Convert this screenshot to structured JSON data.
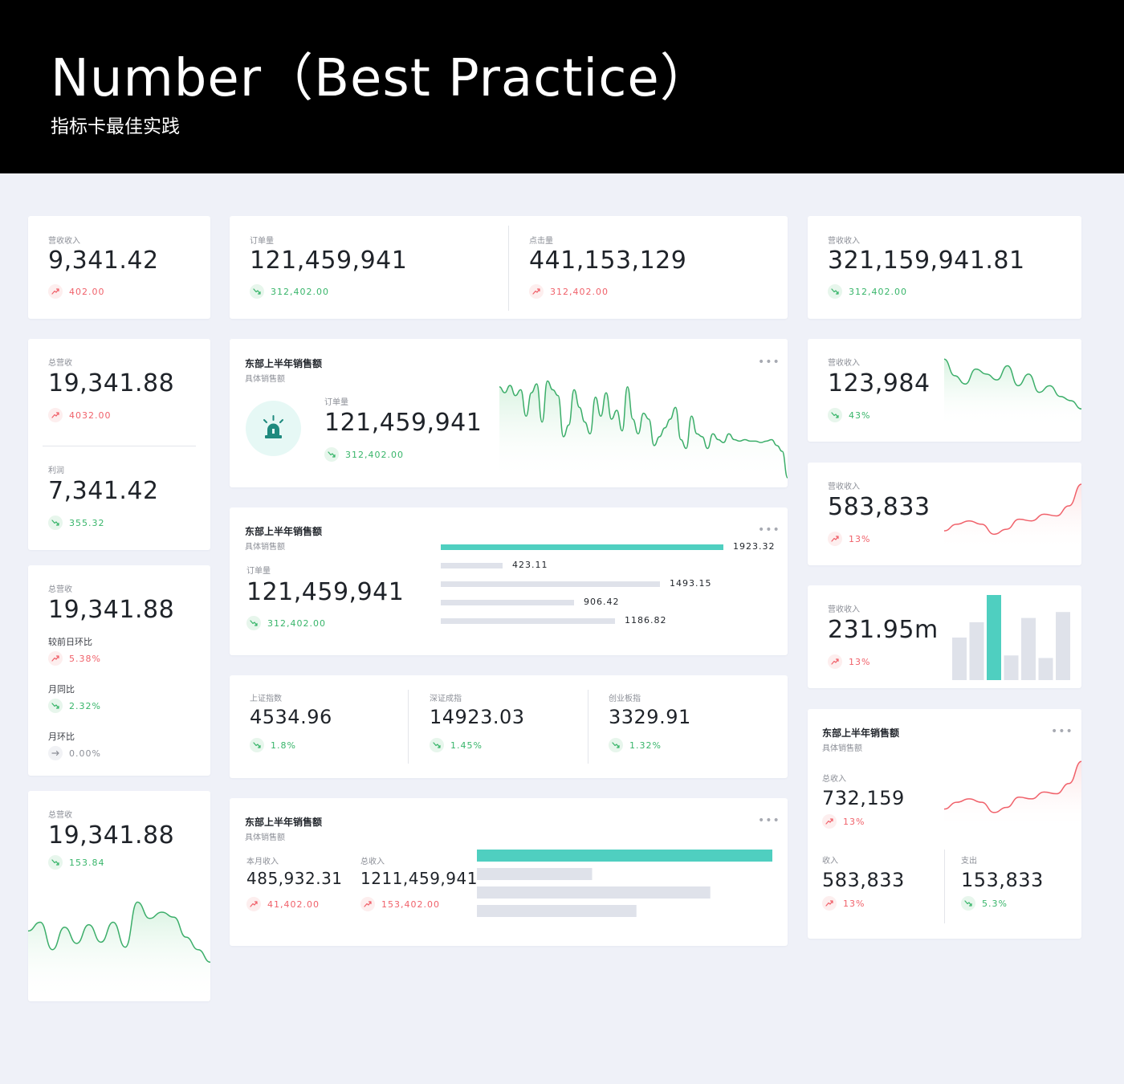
{
  "header": {
    "title": "Number（Best Practice）",
    "subtitle": "指标卡最佳实践"
  },
  "colors": {
    "up": "#f0616a",
    "down": "#38b56a",
    "accent": "#4fcfc0",
    "bar_gray": "#dfe2ea",
    "line_green": "#3cae6a",
    "line_red": "#f0616a"
  },
  "trend_icons": {
    "up": "trend-up-icon",
    "down": "trend-down-icon",
    "flat": "arrow-right-icon"
  },
  "card1": {
    "label": "营收收入",
    "value": "9,341.42",
    "trend": "402.00",
    "direction": "up"
  },
  "card2": {
    "left": {
      "label": "订单量",
      "value": "121,459,941",
      "trend": "312,402.00",
      "direction": "down"
    },
    "right": {
      "label": "点击量",
      "value": "441,153,129",
      "trend": "312,402.00",
      "direction": "up"
    }
  },
  "card3": {
    "label": "营收收入",
    "value": "321,159,941.81",
    "trend": "312,402.00",
    "direction": "down"
  },
  "card4": {
    "top": {
      "label": "总营收",
      "value": "19,341.88",
      "trend": "4032.00",
      "direction": "up"
    },
    "bottom": {
      "label": "利润",
      "value": "7,341.42",
      "trend": "355.32",
      "direction": "down"
    }
  },
  "card5": {
    "title": "东部上半年销售额",
    "subtitle": "具体销售额",
    "more": "•••",
    "icon": "siren-icon",
    "label": "订单量",
    "value": "121,459,941",
    "trend": "312,402.00",
    "direction": "down",
    "chart_data": {
      "type": "area",
      "values": [
        62,
        58,
        63,
        56,
        60,
        42,
        58,
        64,
        38,
        66,
        60,
        56,
        28,
        36,
        60,
        48,
        38,
        30,
        55,
        42,
        58,
        40,
        46,
        32,
        62,
        40,
        30,
        44,
        40,
        22,
        28,
        34,
        40,
        48,
        26,
        20,
        42,
        30,
        28,
        20,
        30,
        26,
        24,
        30,
        26,
        25,
        26,
        25,
        25,
        24,
        25,
        26,
        22,
        18,
        0
      ]
    }
  },
  "card6": {
    "label": "营收收入",
    "value": "123,984",
    "trend": "43%",
    "direction": "down",
    "chart_data": {
      "type": "area",
      "values": [
        80,
        60,
        50,
        68,
        62,
        55,
        72,
        48,
        62,
        40,
        48,
        35,
        30,
        20
      ]
    }
  },
  "card7": {
    "title": "东部上半年销售额",
    "subtitle": "具体销售额",
    "more": "•••",
    "label": "订单量",
    "value": "121,459,941",
    "trend": "312,402.00",
    "direction": "down",
    "chart_data": {
      "type": "bar",
      "values": [
        1923.32,
        423.11,
        1493.15,
        906.42,
        1186.82
      ],
      "labels": [
        "1923.32",
        "423.11",
        "1493.15",
        "906.42",
        "1186.82"
      ],
      "highlight_index": 0
    }
  },
  "card8": {
    "label": "营收收入",
    "value": "583,833",
    "trend": "13%",
    "direction": "up",
    "chart_data": {
      "type": "area",
      "values": [
        22,
        30,
        34,
        30,
        18,
        24,
        36,
        34,
        42,
        40,
        52,
        78
      ]
    }
  },
  "card9": {
    "label": "总营收",
    "value": "19,341.88",
    "rows": [
      {
        "label": "较前日环比",
        "trend": "5.38%",
        "direction": "up"
      },
      {
        "label": "月同比",
        "trend": "2.32%",
        "direction": "down"
      },
      {
        "label": "月环比",
        "trend": "0.00%",
        "direction": "flat"
      }
    ]
  },
  "card10": {
    "label": "营收收入",
    "value": "231.95m",
    "trend": "13%",
    "direction": "up",
    "chart_data": {
      "type": "bar",
      "values": [
        50,
        68,
        100,
        29,
        73,
        26,
        80
      ],
      "highlight_index": 2
    }
  },
  "card11": {
    "items": [
      {
        "label": "上证指数",
        "value": "4534.96",
        "trend": "1.8%",
        "direction": "down"
      },
      {
        "label": "深证成指",
        "value": "14923.03",
        "trend": "1.45%",
        "direction": "down"
      },
      {
        "label": "创业板指",
        "value": "3329.91",
        "trend": "1.32%",
        "direction": "down"
      }
    ]
  },
  "card12": {
    "title": "东部上半年销售额",
    "subtitle": "具体销售额",
    "more": "•••",
    "total": {
      "label": "总收入",
      "value": "732,159",
      "trend": "13%",
      "direction": "up"
    },
    "income": {
      "label": "收入",
      "value": "583,833",
      "trend": "13%",
      "direction": "up"
    },
    "expense": {
      "label": "支出",
      "value": "153,833",
      "trend": "5.3%",
      "direction": "down"
    },
    "chart_data": {
      "type": "area",
      "values": [
        22,
        30,
        34,
        30,
        18,
        24,
        36,
        34,
        42,
        40,
        52,
        78
      ]
    }
  },
  "card13": {
    "label": "总营收",
    "value": "19,341.88",
    "trend": "153.84",
    "direction": "down",
    "chart_data": {
      "type": "area",
      "values": [
        55,
        62,
        40,
        58,
        45,
        60,
        46,
        62,
        42,
        78,
        65,
        70,
        66,
        50,
        40,
        30
      ]
    }
  },
  "card14": {
    "title": "东部上半年销售额",
    "subtitle": "具体销售额",
    "more": "•••",
    "left": {
      "label": "本月收入",
      "value": "485,932.31",
      "trend": "41,402.00",
      "direction": "up"
    },
    "right": {
      "label": "总收入",
      "value": "1211,459,941",
      "trend": "153,402.00",
      "direction": "up"
    },
    "chart_data": {
      "type": "bar",
      "values": [
        100,
        39,
        79,
        54
      ],
      "highlight_index": 0
    }
  }
}
